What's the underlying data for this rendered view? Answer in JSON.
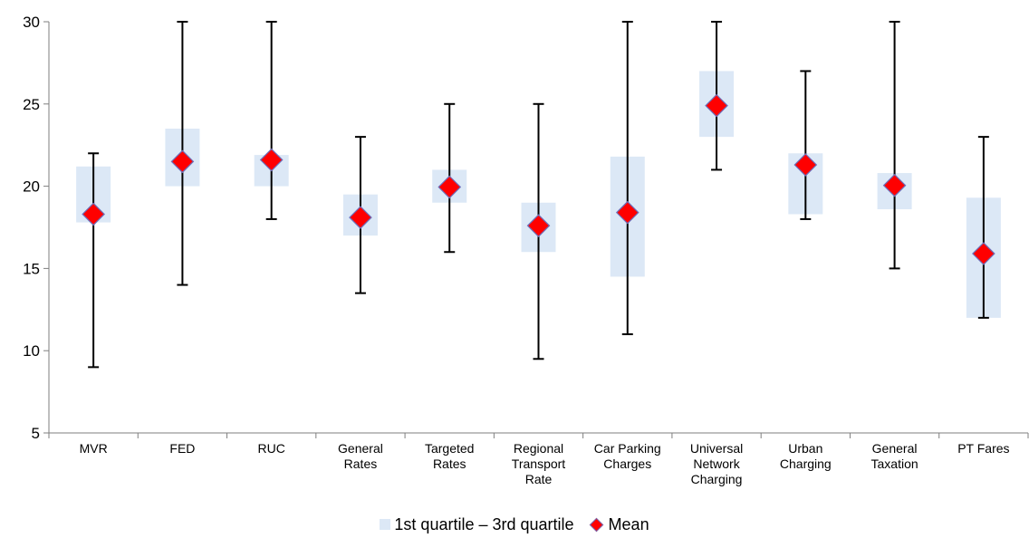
{
  "chart_data": {
    "type": "box",
    "categories": [
      [
        "MVR"
      ],
      [
        "FED"
      ],
      [
        "RUC"
      ],
      [
        "General",
        "Rates"
      ],
      [
        "Targeted",
        "Rates"
      ],
      [
        "Regional",
        "Transport",
        "Rate"
      ],
      [
        "Car Parking",
        "Charges"
      ],
      [
        "Universal",
        "Network",
        "Charging"
      ],
      [
        "Urban",
        "Charging"
      ],
      [
        "General",
        "Taxation"
      ],
      [
        "PT Fares"
      ]
    ],
    "min": [
      9,
      14,
      18,
      13.5,
      16,
      9.5,
      11,
      21,
      18,
      15,
      12
    ],
    "max": [
      22,
      30,
      30,
      23,
      25,
      25,
      30,
      30,
      27,
      30,
      23
    ],
    "q1": [
      17.8,
      20,
      20,
      17,
      19,
      16,
      14.5,
      23,
      18.3,
      18.6,
      12
    ],
    "q3": [
      21.2,
      23.5,
      21.9,
      19.5,
      21,
      19,
      21.8,
      27,
      22,
      20.8,
      19.3
    ],
    "mean": [
      18.3,
      21.5,
      21.6,
      18.1,
      19.95,
      17.6,
      18.4,
      24.9,
      21.3,
      20.05,
      15.9
    ],
    "ylim": [
      5,
      30
    ],
    "yticks": [
      5,
      10,
      15,
      20,
      25,
      30
    ],
    "legend": {
      "position": "bottom",
      "items": [
        "1st quartile – 3rd quartile",
        "Mean"
      ]
    },
    "colors": {
      "box": "#dce8f6",
      "mean_fill": "#ff0000",
      "mean_stroke": "#6d6db8",
      "whisker": "#000000",
      "axis": "#7f7f7f"
    }
  }
}
